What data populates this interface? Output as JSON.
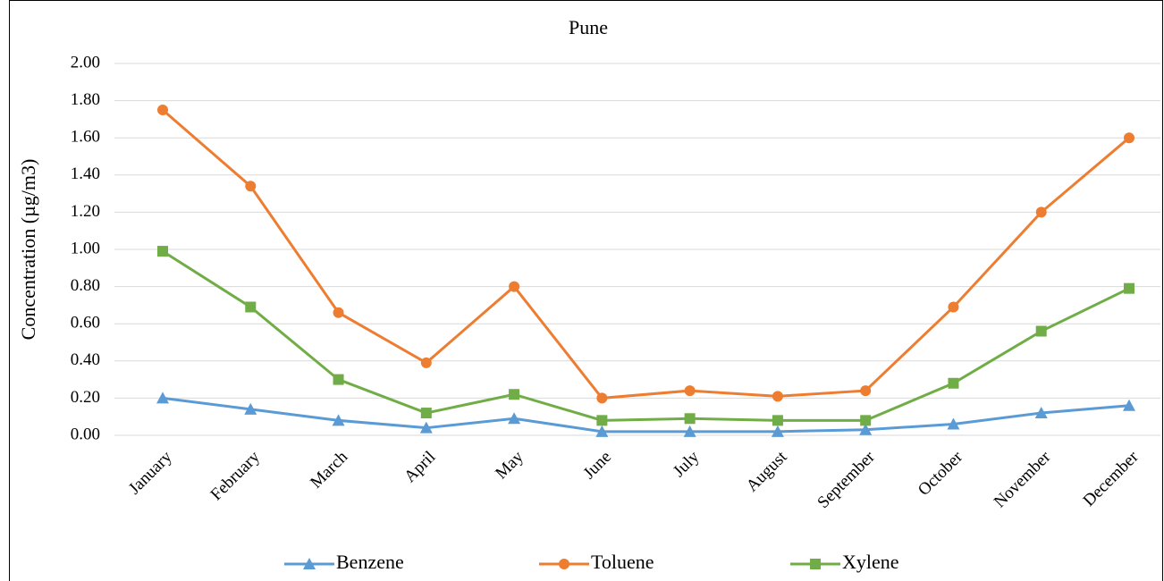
{
  "chart_data": {
    "type": "line",
    "title": "Pune",
    "y_label": "Concentration (µg/m3)",
    "categories": [
      "January",
      "February",
      "March",
      "April",
      "May",
      "June",
      "July",
      "August",
      "September",
      "October",
      "November",
      "December"
    ],
    "series": [
      {
        "name": "Benzene",
        "color": "#5b9bd5",
        "marker": "triangle",
        "values": [
          0.2,
          0.14,
          0.08,
          0.04,
          0.09,
          0.02,
          0.02,
          0.02,
          0.03,
          0.06,
          0.12,
          0.16
        ]
      },
      {
        "name": "Toluene",
        "color": "#ed7d31",
        "marker": "circle",
        "values": [
          1.75,
          1.34,
          0.66,
          0.39,
          0.8,
          0.2,
          0.24,
          0.21,
          0.24,
          0.69,
          1.2,
          1.6
        ]
      },
      {
        "name": "Xylene",
        "color": "#70ad47",
        "marker": "square",
        "values": [
          0.99,
          0.69,
          0.3,
          0.12,
          0.22,
          0.08,
          0.09,
          0.08,
          0.08,
          0.28,
          0.56,
          0.79
        ]
      }
    ],
    "ylim": [
      0,
      2
    ],
    "yticks": [
      {
        "value": 0,
        "label": "0.00"
      },
      {
        "value": 0.2,
        "label": "0.20"
      },
      {
        "value": 0.4,
        "label": "0.40"
      },
      {
        "value": 0.6,
        "label": "0.60"
      },
      {
        "value": 0.8,
        "label": "0.80"
      },
      {
        "value": 1.0,
        "label": "1.00"
      },
      {
        "value": 1.2,
        "label": "1.20"
      },
      {
        "value": 1.4,
        "label": "1.40"
      },
      {
        "value": 1.6,
        "label": "1.60"
      },
      {
        "value": 1.8,
        "label": "1.80"
      },
      {
        "value": 2.0,
        "label": "2.00"
      }
    ],
    "grid": true,
    "legend": "bottom"
  }
}
